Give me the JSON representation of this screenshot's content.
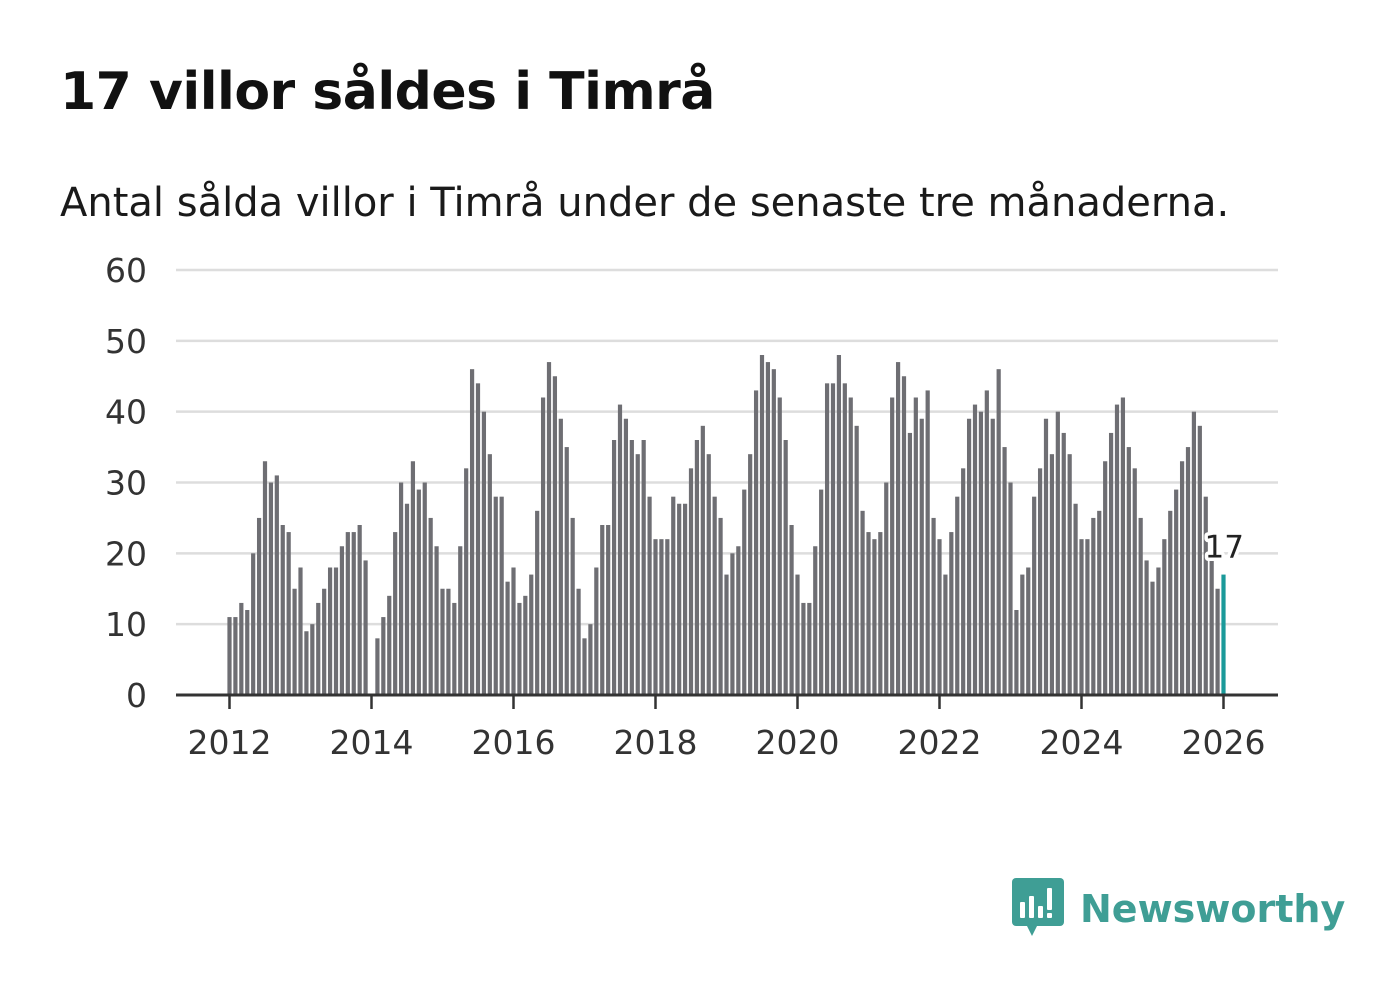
{
  "header": {
    "title": "17 villor såldes i Timrå",
    "subtitle": "Antal sålda villor i Timrå under de senaste tre månaderna."
  },
  "colors": {
    "bar": "#6e6e73",
    "highlight": "#1a9a9a",
    "grid": "#dddddd",
    "axis": "#333333",
    "brand": "#3f9e95"
  },
  "brand": {
    "name": "Newsworthy",
    "icon": "newsworthy-logo-icon"
  },
  "chart_data": {
    "type": "bar",
    "title": "17 villor såldes i Timrå",
    "ylabel": "",
    "xlabel": "",
    "ylim": [
      0,
      60
    ],
    "yticks": [
      0,
      10,
      20,
      30,
      40,
      50,
      60
    ],
    "xticks": [
      "2012",
      "2014",
      "2016",
      "2018",
      "2020",
      "2022",
      "2024",
      "2026"
    ],
    "x_start": "2012-01",
    "highlight_label": "17",
    "values": [
      11,
      11,
      13,
      12,
      20,
      25,
      33,
      30,
      31,
      24,
      23,
      15,
      18,
      9,
      10,
      13,
      15,
      18,
      18,
      21,
      23,
      23,
      24,
      19,
      0,
      8,
      11,
      14,
      23,
      30,
      27,
      33,
      29,
      30,
      25,
      21,
      15,
      15,
      13,
      21,
      32,
      46,
      44,
      40,
      34,
      28,
      28,
      16,
      18,
      13,
      14,
      17,
      26,
      42,
      47,
      45,
      39,
      35,
      25,
      15,
      8,
      10,
      18,
      24,
      24,
      36,
      41,
      39,
      36,
      34,
      36,
      28,
      22,
      22,
      22,
      28,
      27,
      27,
      32,
      36,
      38,
      34,
      28,
      25,
      17,
      20,
      21,
      29,
      34,
      43,
      48,
      47,
      46,
      42,
      36,
      24,
      17,
      13,
      13,
      21,
      29,
      44,
      44,
      48,
      44,
      42,
      38,
      26,
      23,
      22,
      23,
      30,
      42,
      47,
      45,
      37,
      42,
      39,
      43,
      25,
      22,
      17,
      23,
      28,
      32,
      39,
      41,
      40,
      43,
      39,
      46,
      35,
      30,
      12,
      17,
      18,
      28,
      32,
      39,
      34,
      40,
      37,
      34,
      27,
      22,
      22,
      25,
      26,
      33,
      37,
      41,
      42,
      35,
      32,
      25,
      19,
      16,
      18,
      22,
      26,
      29,
      33,
      35,
      40,
      38,
      28,
      19,
      15,
      17
    ]
  }
}
